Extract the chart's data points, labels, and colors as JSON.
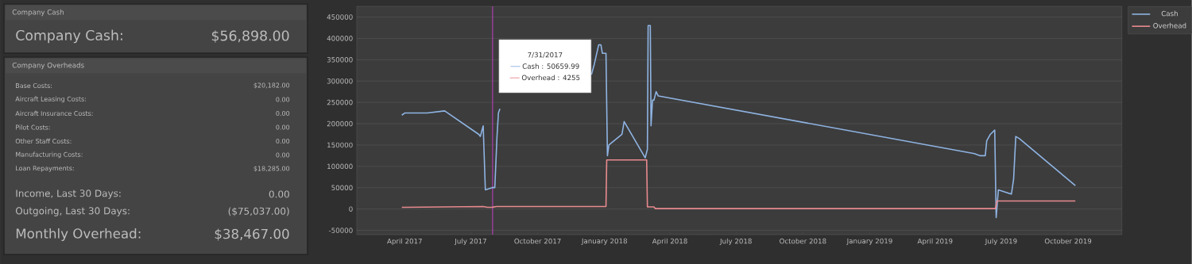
{
  "chart_data": [
    {
      "type": "other",
      "title": "Company Cash",
      "annotations": [
        "Company Cash:",
        "$56,898.00"
      ]
    },
    {
      "type": "other",
      "title": "Company Overheads",
      "annotations": [
        "Base Costs:",
        "$20,182.00",
        "Aircraft Leasing Costs:",
        "0.00",
        "Aircraft Insurance Costs:",
        "0.00",
        "Pilot Costs:",
        "0.00",
        "Other Staff Costs:",
        "0.00",
        "Manufacturing Costs:",
        "0.00",
        "Loan Repayments:",
        "$18,285.00",
        "Income, Last 30 Days:",
        "0.00",
        "Outgoing, Last 30 Days:",
        "($75,037.00)",
        "Monthly Overhead:",
        "$38,467.00"
      ]
    },
    {
      "type": "line",
      "series": [
        {
          "name": "Cash",
          "color": "#8fb4e3",
          "x": [
            "2017-03-28",
            "2017-04-01",
            "2017-05-02",
            "2017-05-26",
            "2017-07-12",
            "2017-07-14",
            "2017-07-18",
            "2017-07-21",
            "2017-07-31",
            "2017-08-03",
            "2017-08-06",
            "2017-08-08",
            "2017-08-10",
            "2017-10-15",
            "2017-12-14",
            "2017-12-18",
            "2017-12-24",
            "2017-12-27",
            "2017-12-29",
            "2018-01-03",
            "2018-01-05",
            "2018-01-07",
            "2018-01-25",
            "2018-01-28",
            "2018-02-26",
            "2018-03-01",
            "2018-03-02",
            "2018-03-05",
            "2018-03-06",
            "2018-03-08",
            "2018-03-10",
            "2018-03-13",
            "2018-03-16",
            "2019-05-25",
            "2019-06-02",
            "2019-06-09",
            "2019-06-11",
            "2019-06-16",
            "2019-06-22",
            "2019-06-24",
            "2019-06-27",
            "2019-07-15",
            "2019-07-18",
            "2019-07-21",
            "2019-07-26",
            "2019-10-11"
          ],
          "values": [
            220000,
            225000,
            225000,
            230000,
            175000,
            170000,
            195000,
            45000,
            50659.99,
            50000,
            170000,
            225000,
            235000,
            null,
            315000,
            340000,
            385000,
            385000,
            365000,
            365000,
            125000,
            150000,
            175000,
            205000,
            120000,
            140000,
            430000,
            430000,
            195000,
            255000,
            255000,
            275000,
            265000,
            130000,
            125000,
            125000,
            160000,
            175000,
            185000,
            -20000,
            45000,
            35000,
            70000,
            170000,
            165000,
            55000
          ]
        },
        {
          "name": "Overhead",
          "color": "#e88a8f",
          "x": [
            "2017-03-28",
            "2017-07-18",
            "2017-07-24",
            "2017-07-31",
            "2017-08-05",
            "2018-01-03",
            "2018-01-04",
            "2018-02-28",
            "2018-03-01",
            "2018-03-10",
            "2018-03-12",
            "2019-06-23",
            "2019-06-25",
            "2019-10-11"
          ],
          "values": [
            4000,
            6000,
            4000,
            4255,
            6000,
            6000,
            115000,
            115000,
            5000,
            5000,
            1000,
            1000,
            19000,
            19000
          ]
        }
      ],
      "xlim": [
        "2017-01-25",
        "2019-12-14"
      ],
      "xticks": [
        {
          "value": "2017-04-01",
          "label": "April 2017"
        },
        {
          "value": "2017-07-01",
          "label": "July 2017"
        },
        {
          "value": "2017-10-01",
          "label": "October 2017"
        },
        {
          "value": "2018-01-01",
          "label": "January 2018"
        },
        {
          "value": "2018-04-01",
          "label": "April 2018"
        },
        {
          "value": "2018-07-01",
          "label": "July 2018"
        },
        {
          "value": "2018-10-01",
          "label": "October 2018"
        },
        {
          "value": "2019-01-01",
          "label": "January 2019"
        },
        {
          "value": "2019-04-01",
          "label": "April 2019"
        },
        {
          "value": "2019-07-01",
          "label": "July 2019"
        },
        {
          "value": "2019-10-01",
          "label": "October 2019"
        }
      ],
      "ylim": [
        -60000,
        475000
      ],
      "yticks": [
        -50000,
        0,
        50000,
        100000,
        150000,
        200000,
        250000,
        300000,
        350000,
        400000,
        450000
      ],
      "grid": "y",
      "legend": "top right",
      "ref_lines": [
        {
          "axis": "x",
          "value": "2017-07-31",
          "color": "#c040c0"
        }
      ],
      "annotations": [
        "7/31/2017",
        "Cash : 50659.99",
        "Overhead : 4255"
      ]
    }
  ]
}
